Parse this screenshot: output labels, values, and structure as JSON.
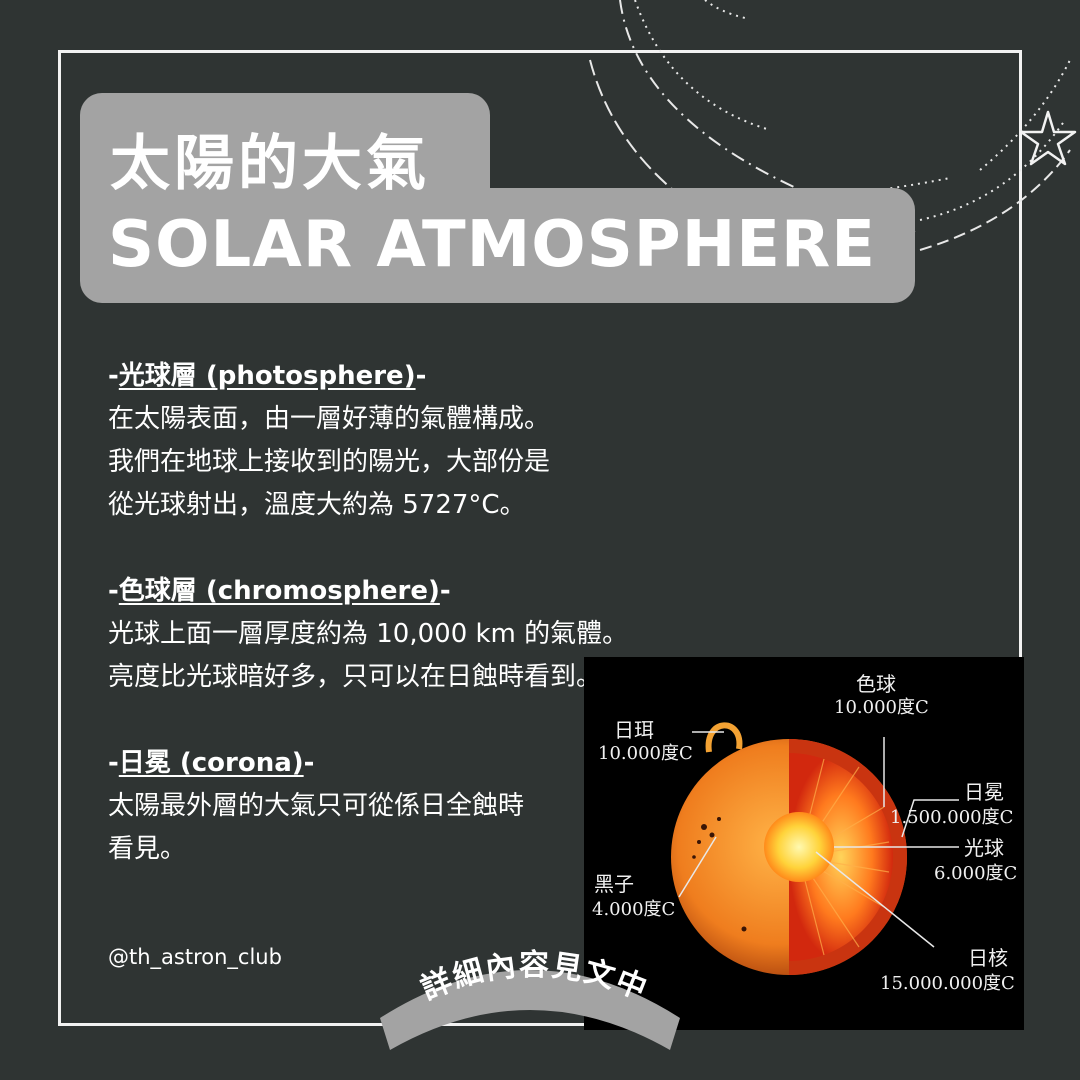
{
  "title": {
    "zh": "太陽的大氣",
    "en": "SOLAR ATMOSPHERE"
  },
  "sections": [
    {
      "heading_prefix": "-",
      "heading": "光球層 (photosphere)",
      "heading_suffix": "-",
      "lines": [
        "在太陽表面，由一層好薄的氣體構成。",
        "我們在地球上接收到的陽光，大部份是",
        "從光球射出，溫度大約為 5727°C。"
      ]
    },
    {
      "heading_prefix": "-",
      "heading": "色球層 (chromosphere)",
      "heading_suffix": "-",
      "lines": [
        "光球上面一層厚度約為 10,000 km 的氣體。",
        "亮度比光球暗好多，只可以在日蝕時看到。"
      ]
    },
    {
      "heading_prefix": "-",
      "heading": "日冕 (corona)",
      "heading_suffix": "-",
      "lines": [
        "太陽最外層的大氣只可從係日全蝕時",
        "看見。"
      ]
    }
  ],
  "handle": "@th_astron_club",
  "badge": "詳細內容見文中",
  "diagram": {
    "labels": {
      "chromosphere_name": "色球",
      "chromosphere_temp": "10.000度C",
      "prominence_name": "日珥",
      "prominence_temp": "10.000度C",
      "corona_name": "日冕",
      "corona_temp": "1.500.000度C",
      "photosphere_name": "光球",
      "photosphere_temp": "6.000度C",
      "sunspot_name": "黑子",
      "sunspot_temp": "4.000度C",
      "core_name": "日核",
      "core_temp": "15.000.000度C"
    }
  },
  "colors": {
    "background": "#2f3433",
    "title_box": "#a3a3a3",
    "frame": "#f2f2f2",
    "badge": "#a3a3a3"
  }
}
